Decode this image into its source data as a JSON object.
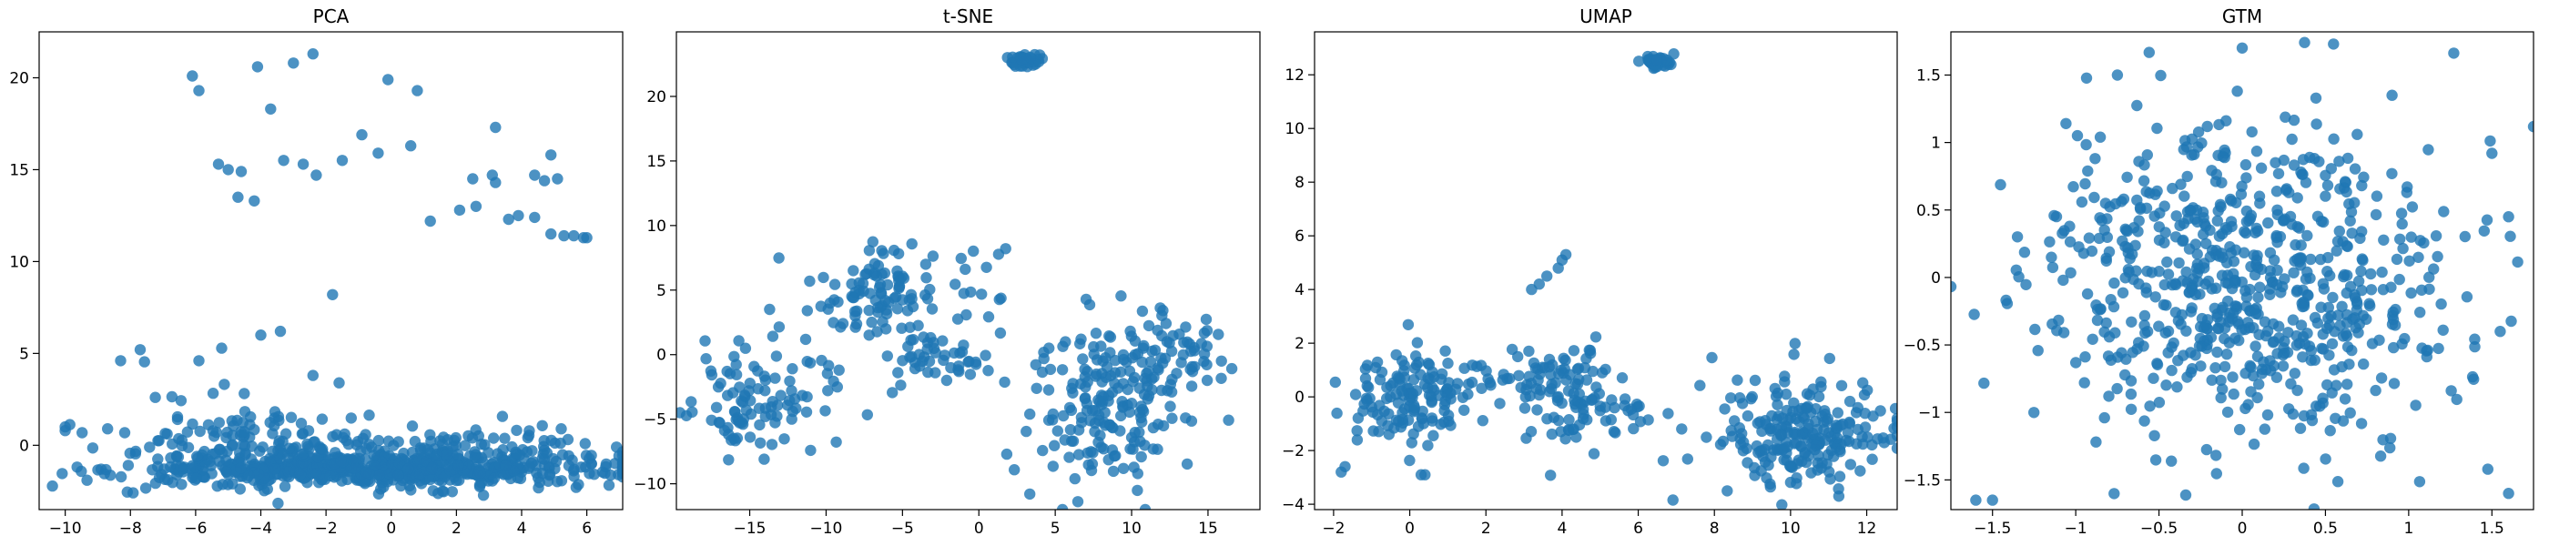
{
  "figure": {
    "background": "#ffffff",
    "marker_color": "#1f77b4",
    "marker_alpha": 0.8
  },
  "chart_data": [
    {
      "type": "scatter",
      "title": "PCA",
      "xlabel": "",
      "ylabel": "",
      "xlim": [
        -10.8,
        7.1
      ],
      "ylim": [
        -3.5,
        22.5
      ],
      "xticks": [
        -10,
        -8,
        -6,
        -4,
        -2,
        0,
        2,
        4,
        6
      ],
      "yticks": [
        0,
        5,
        10,
        15,
        20
      ],
      "clusters": [
        {
          "cx": -0.5,
          "cy": -1.3,
          "sx": 3.8,
          "sy": 0.45,
          "n": 620
        },
        {
          "cx": -4.0,
          "cy": 0.2,
          "sx": 2.0,
          "sy": 1.0,
          "n": 110
        },
        {
          "cx": 2.0,
          "cy": -0.3,
          "sx": 2.5,
          "sy": 0.7,
          "n": 110
        },
        {
          "cx": -6.0,
          "cy": 2.8,
          "sx": 1.5,
          "sy": 1.3,
          "n": 16
        }
      ],
      "points": [
        [
          -10,
          1.0
        ],
        [
          -10,
          0.8
        ],
        [
          -8.7,
          0.9
        ],
        [
          -8.3,
          4.6
        ],
        [
          -7.7,
          5.2
        ],
        [
          -5.9,
          4.6
        ],
        [
          -4,
          6
        ],
        [
          -3.4,
          6.2
        ],
        [
          -2.4,
          3.8
        ],
        [
          -1.8,
          8.2
        ],
        [
          -1.6,
          3.4
        ],
        [
          -6.1,
          20.1
        ],
        [
          -5.9,
          19.3
        ],
        [
          -4.1,
          20.6
        ],
        [
          -3.0,
          20.8
        ],
        [
          -2.4,
          21.3
        ],
        [
          -0.1,
          19.9
        ],
        [
          0.8,
          19.3
        ],
        [
          -3.7,
          18.3
        ],
        [
          -5.3,
          15.3
        ],
        [
          -5.0,
          15.0
        ],
        [
          -4.6,
          14.9
        ],
        [
          -4.7,
          13.5
        ],
        [
          -4.2,
          13.3
        ],
        [
          -3.3,
          15.5
        ],
        [
          -2.7,
          15.3
        ],
        [
          -2.3,
          14.7
        ],
        [
          -1.5,
          15.5
        ],
        [
          -0.9,
          16.9
        ],
        [
          -0.4,
          15.9
        ],
        [
          0.6,
          16.3
        ],
        [
          1.2,
          12.2
        ],
        [
          2.1,
          12.8
        ],
        [
          2.6,
          13.0
        ],
        [
          2.5,
          14.5
        ],
        [
          3.1,
          14.7
        ],
        [
          3.2,
          14.3
        ],
        [
          3.2,
          17.3
        ],
        [
          3.6,
          12.3
        ],
        [
          3.9,
          12.5
        ],
        [
          4.4,
          14.7
        ],
        [
          4.7,
          14.4
        ],
        [
          4.4,
          12.4
        ],
        [
          4.9,
          15.8
        ],
        [
          4.9,
          11.5
        ],
        [
          5.3,
          11.4
        ],
        [
          5.6,
          11.4
        ],
        [
          5.9,
          11.3
        ],
        [
          6.0,
          11.3
        ],
        [
          5.1,
          14.5
        ]
      ]
    },
    {
      "type": "scatter",
      "title": "t-SNE",
      "xlabel": "",
      "ylabel": "",
      "xlim": [
        -19.8,
        18.4
      ],
      "ylim": [
        -12.0,
        25.0
      ],
      "xticks": [
        -15,
        -10,
        -5,
        0,
        5,
        10,
        15
      ],
      "yticks": [
        -10,
        -5,
        0,
        5,
        10,
        15,
        20
      ],
      "clusters": [
        {
          "cx": 3.0,
          "cy": 22.8,
          "sx": 0.5,
          "sy": 0.25,
          "n": 40
        },
        {
          "cx": -15.5,
          "cy": -3.5,
          "sx": 1.4,
          "sy": 2.0,
          "n": 70
        },
        {
          "cx": -11.0,
          "cy": -2.0,
          "sx": 2.0,
          "sy": 3.0,
          "n": 40
        },
        {
          "cx": -6.5,
          "cy": 5.0,
          "sx": 1.8,
          "sy": 1.8,
          "n": 90
        },
        {
          "cx": -3.0,
          "cy": 0.0,
          "sx": 1.8,
          "sy": 1.2,
          "n": 45
        },
        {
          "cx": 0.0,
          "cy": 6.0,
          "sx": 1.0,
          "sy": 3.0,
          "n": 15
        },
        {
          "cx": 8.5,
          "cy": -4.0,
          "sx": 2.5,
          "sy": 3.2,
          "n": 180
        },
        {
          "cx": 13.0,
          "cy": 0.0,
          "sx": 1.8,
          "sy": 2.2,
          "n": 60
        }
      ],
      "points": []
    },
    {
      "type": "scatter",
      "title": "UMAP",
      "xlabel": "",
      "ylabel": "",
      "xlim": [
        -2.5,
        12.8
      ],
      "ylim": [
        -4.2,
        13.6
      ],
      "xticks": [
        -2,
        0,
        2,
        4,
        6,
        8,
        10,
        12
      ],
      "yticks": [
        -4,
        -2,
        0,
        2,
        4,
        6,
        8,
        10,
        12
      ],
      "clusters": [
        {
          "cx": 6.5,
          "cy": 12.5,
          "sx": 0.18,
          "sy": 0.12,
          "n": 40
        },
        {
          "cx": 0.0,
          "cy": 0.0,
          "sx": 0.9,
          "sy": 0.9,
          "n": 130
        },
        {
          "cx": 2.2,
          "cy": 0.7,
          "sx": 1.2,
          "sy": 0.4,
          "n": 30
        },
        {
          "cx": 4.4,
          "cy": 0.0,
          "sx": 0.7,
          "sy": 1.0,
          "n": 100
        },
        {
          "cx": 10.3,
          "cy": -1.5,
          "sx": 1.2,
          "sy": 1.1,
          "n": 230
        },
        {
          "cx": 6.0,
          "cy": -0.4,
          "sx": 0.2,
          "sy": 0.4,
          "n": 6
        }
      ],
      "points": [
        [
          3.2,
          4.0
        ],
        [
          3.4,
          4.2
        ],
        [
          3.6,
          4.5
        ],
        [
          3.9,
          4.8
        ],
        [
          4.0,
          5.1
        ],
        [
          4.1,
          5.3
        ],
        [
          -1.8,
          -2.8
        ],
        [
          -1.7,
          -2.6
        ],
        [
          0.3,
          -2.9
        ],
        [
          0.4,
          -2.9
        ]
      ]
    },
    {
      "type": "scatter",
      "title": "GTM",
      "xlabel": "",
      "ylabel": "",
      "xlim": [
        -1.75,
        1.75
      ],
      "ylim": [
        -1.72,
        1.82
      ],
      "xticks": [
        -1.5,
        -1.0,
        -0.5,
        0.0,
        0.5,
        1.0,
        1.5
      ],
      "yticks": [
        -1.5,
        -1.0,
        -0.5,
        0.0,
        0.5,
        1.0,
        1.5
      ],
      "clusters": [
        {
          "cx": 0.0,
          "cy": 0.0,
          "sx": 0.6,
          "sy": 0.6,
          "n": 720
        }
      ],
      "points": [
        [
          -1.6,
          -1.65
        ],
        [
          -1.5,
          -1.65
        ],
        [
          1.6,
          -1.6
        ],
        [
          1.5,
          0.92
        ],
        [
          1.6,
          0.45
        ],
        [
          1.55,
          -0.4
        ],
        [
          0.0,
          1.7
        ],
        [
          0.9,
          1.35
        ],
        [
          -0.75,
          1.5
        ]
      ]
    }
  ]
}
